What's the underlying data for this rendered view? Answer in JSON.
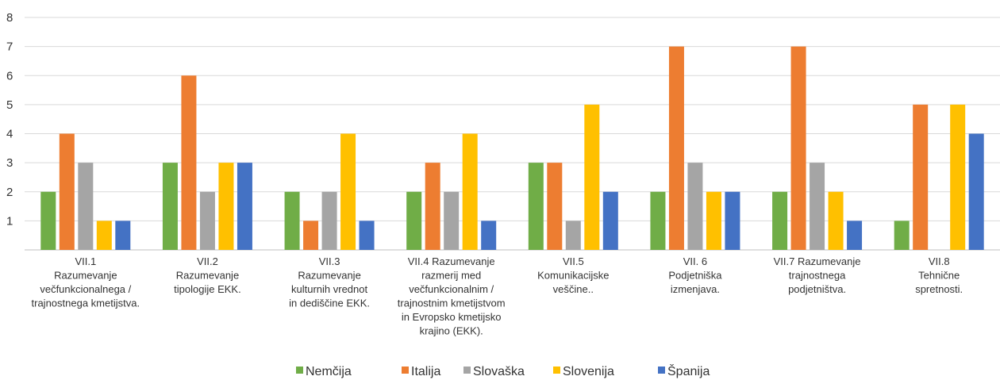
{
  "chart_data": {
    "type": "bar",
    "categories": [
      "VII.1\nRazumevanje\nvečfunkcionalnega /\ntrajnostnega kmetijstva.",
      "VII.2\nRazumevanje\ntipologije EKK.",
      "VII.3\nRazumevanje\nkulturnih vrednot\nin dediščine EKK.",
      "VII.4 Razumevanje\nrazmerij med\nvečfunkcionalnim /\ntrajnostnim kmetijstvom\nin Evropsko kmetijsko\nkrajino (EKK).",
      "VII.5\nKomunikacijske\nveščine..",
      "VII. 6\nPodjetniška\nizmenjava.",
      "VII.7 Razumevanje\ntrajnostnega\npodjetništva.",
      "VII.8\nTehnične\nspretnosti."
    ],
    "series": [
      {
        "name": "Nemčija",
        "color": "#70ad47",
        "values": [
          2,
          3,
          2,
          2,
          3,
          2,
          2,
          1
        ]
      },
      {
        "name": "Italija",
        "color": "#ed7d31",
        "values": [
          4,
          6,
          1,
          3,
          3,
          7,
          7,
          5
        ]
      },
      {
        "name": "Slovaška",
        "color": "#a5a5a5",
        "values": [
          3,
          2,
          2,
          2,
          1,
          3,
          3,
          0
        ]
      },
      {
        "name": "Slovenija",
        "color": "#ffc000",
        "values": [
          1,
          3,
          4,
          4,
          5,
          2,
          2,
          5
        ]
      },
      {
        "name": "Španija",
        "color": "#4472c4",
        "values": [
          1,
          3,
          1,
          1,
          2,
          2,
          1,
          4
        ]
      }
    ],
    "ylim": [
      0,
      8
    ],
    "yticks": [
      1,
      2,
      3,
      4,
      5,
      6,
      7,
      8
    ],
    "grid": true,
    "legend": "bottom"
  }
}
